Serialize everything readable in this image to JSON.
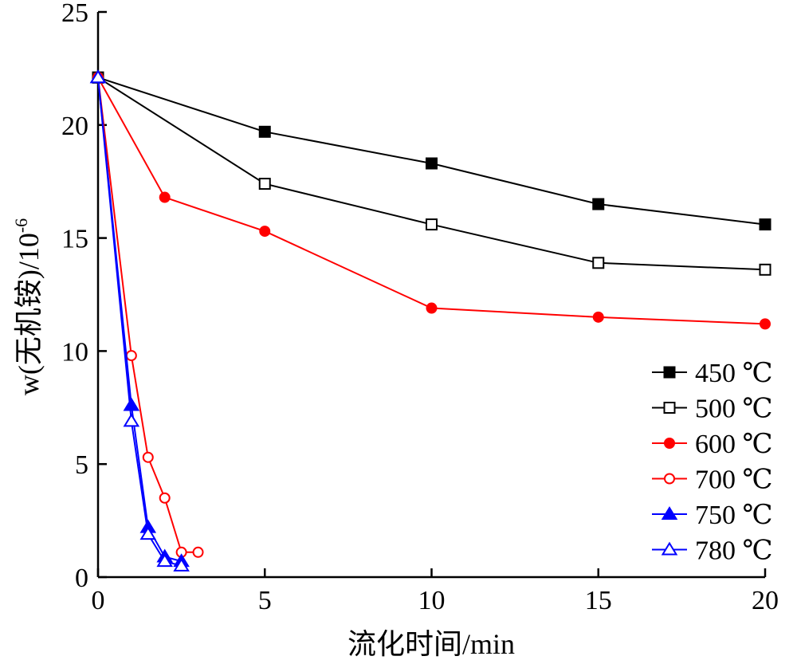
{
  "chart_data": {
    "type": "line",
    "title": "",
    "xlabel": "流化时间/min",
    "ylabel": "w(无机铵)/10",
    "ylabel_sup": "-6",
    "xlim": [
      0,
      20
    ],
    "ylim": [
      0,
      25
    ],
    "x_ticks": [
      0,
      5,
      10,
      15,
      20
    ],
    "y_ticks": [
      0,
      5,
      10,
      15,
      20,
      25
    ],
    "grid": false,
    "legend_position": "bottom-right",
    "series": [
      {
        "name": "450 ℃",
        "color": "#000000",
        "marker": "square-filled",
        "points": [
          [
            0,
            22.1
          ],
          [
            5,
            19.7
          ],
          [
            10,
            18.3
          ],
          [
            15,
            16.5
          ],
          [
            20,
            15.6
          ]
        ]
      },
      {
        "name": "500 ℃",
        "color": "#000000",
        "marker": "square-open",
        "points": [
          [
            0,
            22.1
          ],
          [
            5,
            17.4
          ],
          [
            10,
            15.6
          ],
          [
            15,
            13.9
          ],
          [
            20,
            13.6
          ]
        ]
      },
      {
        "name": "600 ℃",
        "color": "#ff0000",
        "marker": "circle-filled",
        "points": [
          [
            0,
            22.1
          ],
          [
            2,
            16.8
          ],
          [
            5,
            15.3
          ],
          [
            10,
            11.9
          ],
          [
            15,
            11.5
          ],
          [
            20,
            11.2
          ]
        ]
      },
      {
        "name": "700 ℃",
        "color": "#ff0000",
        "marker": "circle-open",
        "points": [
          [
            0,
            22.1
          ],
          [
            1,
            9.8
          ],
          [
            1.5,
            5.3
          ],
          [
            2,
            3.5
          ],
          [
            2.5,
            1.1
          ],
          [
            3,
            1.1
          ]
        ]
      },
      {
        "name": "750 ℃",
        "color": "#0000ff",
        "marker": "triangle-filled",
        "points": [
          [
            0,
            22.1
          ],
          [
            1,
            7.6
          ],
          [
            1.5,
            2.2
          ],
          [
            2,
            0.9
          ],
          [
            2.5,
            0.7
          ]
        ]
      },
      {
        "name": "780 ℃",
        "color": "#0000ff",
        "marker": "triangle-open",
        "points": [
          [
            0,
            22.1
          ],
          [
            1,
            6.9
          ],
          [
            1.5,
            1.9
          ],
          [
            2,
            0.7
          ],
          [
            2.5,
            0.5
          ]
        ]
      }
    ]
  }
}
